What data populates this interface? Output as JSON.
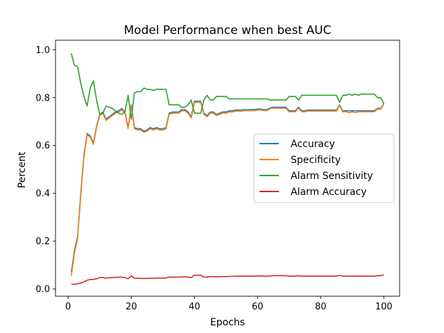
{
  "chart_data": {
    "type": "line",
    "title": "Model Performance when best AUC",
    "xlabel": "Epochs",
    "ylabel": "Percent",
    "xlim": [
      -4,
      105
    ],
    "ylim": [
      -0.03,
      1.04
    ],
    "xticks": [
      0,
      20,
      40,
      60,
      80,
      100
    ],
    "yticks": [
      0.0,
      0.2,
      0.4,
      0.6,
      0.8,
      1.0
    ],
    "grid": false,
    "legend_position": "center-right",
    "x": [
      1,
      2,
      3,
      4,
      5,
      6,
      7,
      8,
      9,
      10,
      11,
      12,
      13,
      14,
      15,
      16,
      17,
      18,
      19,
      20,
      21,
      22,
      23,
      24,
      25,
      26,
      27,
      28,
      29,
      30,
      31,
      32,
      33,
      34,
      35,
      36,
      37,
      38,
      39,
      40,
      41,
      42,
      43,
      44,
      45,
      46,
      47,
      48,
      49,
      50,
      51,
      52,
      53,
      54,
      55,
      56,
      57,
      58,
      59,
      60,
      61,
      62,
      63,
      64,
      65,
      66,
      67,
      68,
      69,
      70,
      71,
      72,
      73,
      74,
      75,
      76,
      77,
      78,
      79,
      80,
      81,
      82,
      83,
      84,
      85,
      86,
      87,
      88,
      89,
      90,
      91,
      92,
      93,
      94,
      95,
      96,
      97,
      98,
      99,
      100
    ],
    "series": [
      {
        "name": "Accuracy",
        "color": "#1f77b4",
        "values": [
          0.07,
          0.16,
          0.22,
          0.4,
          0.56,
          0.65,
          0.64,
          0.61,
          0.68,
          0.73,
          0.74,
          0.71,
          0.72,
          0.73,
          0.74,
          0.745,
          0.755,
          0.74,
          0.675,
          0.77,
          0.675,
          0.67,
          0.67,
          0.66,
          0.665,
          0.675,
          0.67,
          0.675,
          0.67,
          0.67,
          0.675,
          0.735,
          0.74,
          0.74,
          0.74,
          0.75,
          0.75,
          0.74,
          0.72,
          0.785,
          0.785,
          0.785,
          0.735,
          0.725,
          0.74,
          0.74,
          0.73,
          0.735,
          0.74,
          0.74,
          0.745,
          0.745,
          0.748,
          0.748,
          0.748,
          0.75,
          0.75,
          0.75,
          0.75,
          0.752,
          0.752,
          0.75,
          0.75,
          0.757,
          0.76,
          0.76,
          0.76,
          0.76,
          0.76,
          0.745,
          0.745,
          0.745,
          0.76,
          0.745,
          0.745,
          0.748,
          0.748,
          0.748,
          0.748,
          0.748,
          0.748,
          0.748,
          0.748,
          0.748,
          0.748,
          0.77,
          0.745,
          0.745,
          0.745,
          0.745,
          0.745,
          0.745,
          0.745,
          0.745,
          0.745,
          0.745,
          0.745,
          0.755,
          0.755,
          0.775
        ]
      },
      {
        "name": "Specificity",
        "color": "#ff7f0e",
        "values": [
          0.055,
          0.15,
          0.21,
          0.39,
          0.55,
          0.645,
          0.635,
          0.605,
          0.675,
          0.725,
          0.735,
          0.705,
          0.715,
          0.725,
          0.735,
          0.74,
          0.75,
          0.735,
          0.67,
          0.765,
          0.67,
          0.665,
          0.665,
          0.655,
          0.66,
          0.67,
          0.665,
          0.67,
          0.665,
          0.665,
          0.67,
          0.73,
          0.735,
          0.735,
          0.735,
          0.745,
          0.745,
          0.735,
          0.715,
          0.78,
          0.78,
          0.78,
          0.73,
          0.72,
          0.735,
          0.735,
          0.725,
          0.73,
          0.735,
          0.735,
          0.74,
          0.74,
          0.744,
          0.744,
          0.744,
          0.746,
          0.746,
          0.746,
          0.746,
          0.748,
          0.748,
          0.746,
          0.746,
          0.754,
          0.756,
          0.756,
          0.756,
          0.756,
          0.756,
          0.741,
          0.741,
          0.741,
          0.756,
          0.741,
          0.741,
          0.744,
          0.744,
          0.744,
          0.744,
          0.744,
          0.744,
          0.744,
          0.744,
          0.744,
          0.744,
          0.767,
          0.741,
          0.741,
          0.737,
          0.741,
          0.737,
          0.741,
          0.741,
          0.741,
          0.741,
          0.741,
          0.741,
          0.752,
          0.752,
          0.773
        ]
      },
      {
        "name": "Alarm Sensitivity",
        "color": "#2ca02c",
        "values": [
          0.985,
          0.935,
          0.93,
          0.86,
          0.805,
          0.765,
          0.84,
          0.87,
          0.79,
          0.73,
          0.735,
          0.765,
          0.76,
          0.755,
          0.745,
          0.735,
          0.73,
          0.74,
          0.81,
          0.71,
          0.82,
          0.825,
          0.825,
          0.84,
          0.835,
          0.835,
          0.83,
          0.835,
          0.835,
          0.835,
          0.835,
          0.77,
          0.77,
          0.77,
          0.77,
          0.76,
          0.76,
          0.77,
          0.79,
          0.735,
          0.735,
          0.735,
          0.79,
          0.81,
          0.79,
          0.79,
          0.805,
          0.805,
          0.805,
          0.805,
          0.795,
          0.795,
          0.795,
          0.795,
          0.795,
          0.795,
          0.795,
          0.795,
          0.795,
          0.795,
          0.795,
          0.795,
          0.795,
          0.79,
          0.79,
          0.79,
          0.79,
          0.79,
          0.79,
          0.805,
          0.805,
          0.805,
          0.79,
          0.81,
          0.81,
          0.81,
          0.81,
          0.81,
          0.81,
          0.81,
          0.81,
          0.81,
          0.81,
          0.81,
          0.81,
          0.78,
          0.81,
          0.81,
          0.815,
          0.81,
          0.815,
          0.81,
          0.815,
          0.815,
          0.815,
          0.815,
          0.815,
          0.8,
          0.8,
          0.775
        ]
      },
      {
        "name": "Alarm Accuracy",
        "color": "#d62728",
        "values": [
          0.02,
          0.02,
          0.022,
          0.025,
          0.03,
          0.037,
          0.04,
          0.04,
          0.043,
          0.048,
          0.048,
          0.046,
          0.047,
          0.048,
          0.049,
          0.05,
          0.05,
          0.048,
          0.043,
          0.055,
          0.045,
          0.045,
          0.045,
          0.044,
          0.045,
          0.045,
          0.045,
          0.046,
          0.046,
          0.046,
          0.046,
          0.05,
          0.05,
          0.05,
          0.05,
          0.051,
          0.051,
          0.05,
          0.048,
          0.058,
          0.058,
          0.058,
          0.05,
          0.05,
          0.052,
          0.052,
          0.051,
          0.052,
          0.052,
          0.052,
          0.053,
          0.053,
          0.054,
          0.054,
          0.054,
          0.054,
          0.054,
          0.054,
          0.054,
          0.055,
          0.055,
          0.054,
          0.054,
          0.055,
          0.056,
          0.056,
          0.056,
          0.056,
          0.056,
          0.054,
          0.054,
          0.054,
          0.056,
          0.054,
          0.054,
          0.054,
          0.054,
          0.054,
          0.054,
          0.054,
          0.054,
          0.054,
          0.054,
          0.054,
          0.054,
          0.057,
          0.054,
          0.054,
          0.054,
          0.054,
          0.054,
          0.054,
          0.054,
          0.054,
          0.054,
          0.054,
          0.054,
          0.056,
          0.056,
          0.06
        ]
      }
    ]
  }
}
